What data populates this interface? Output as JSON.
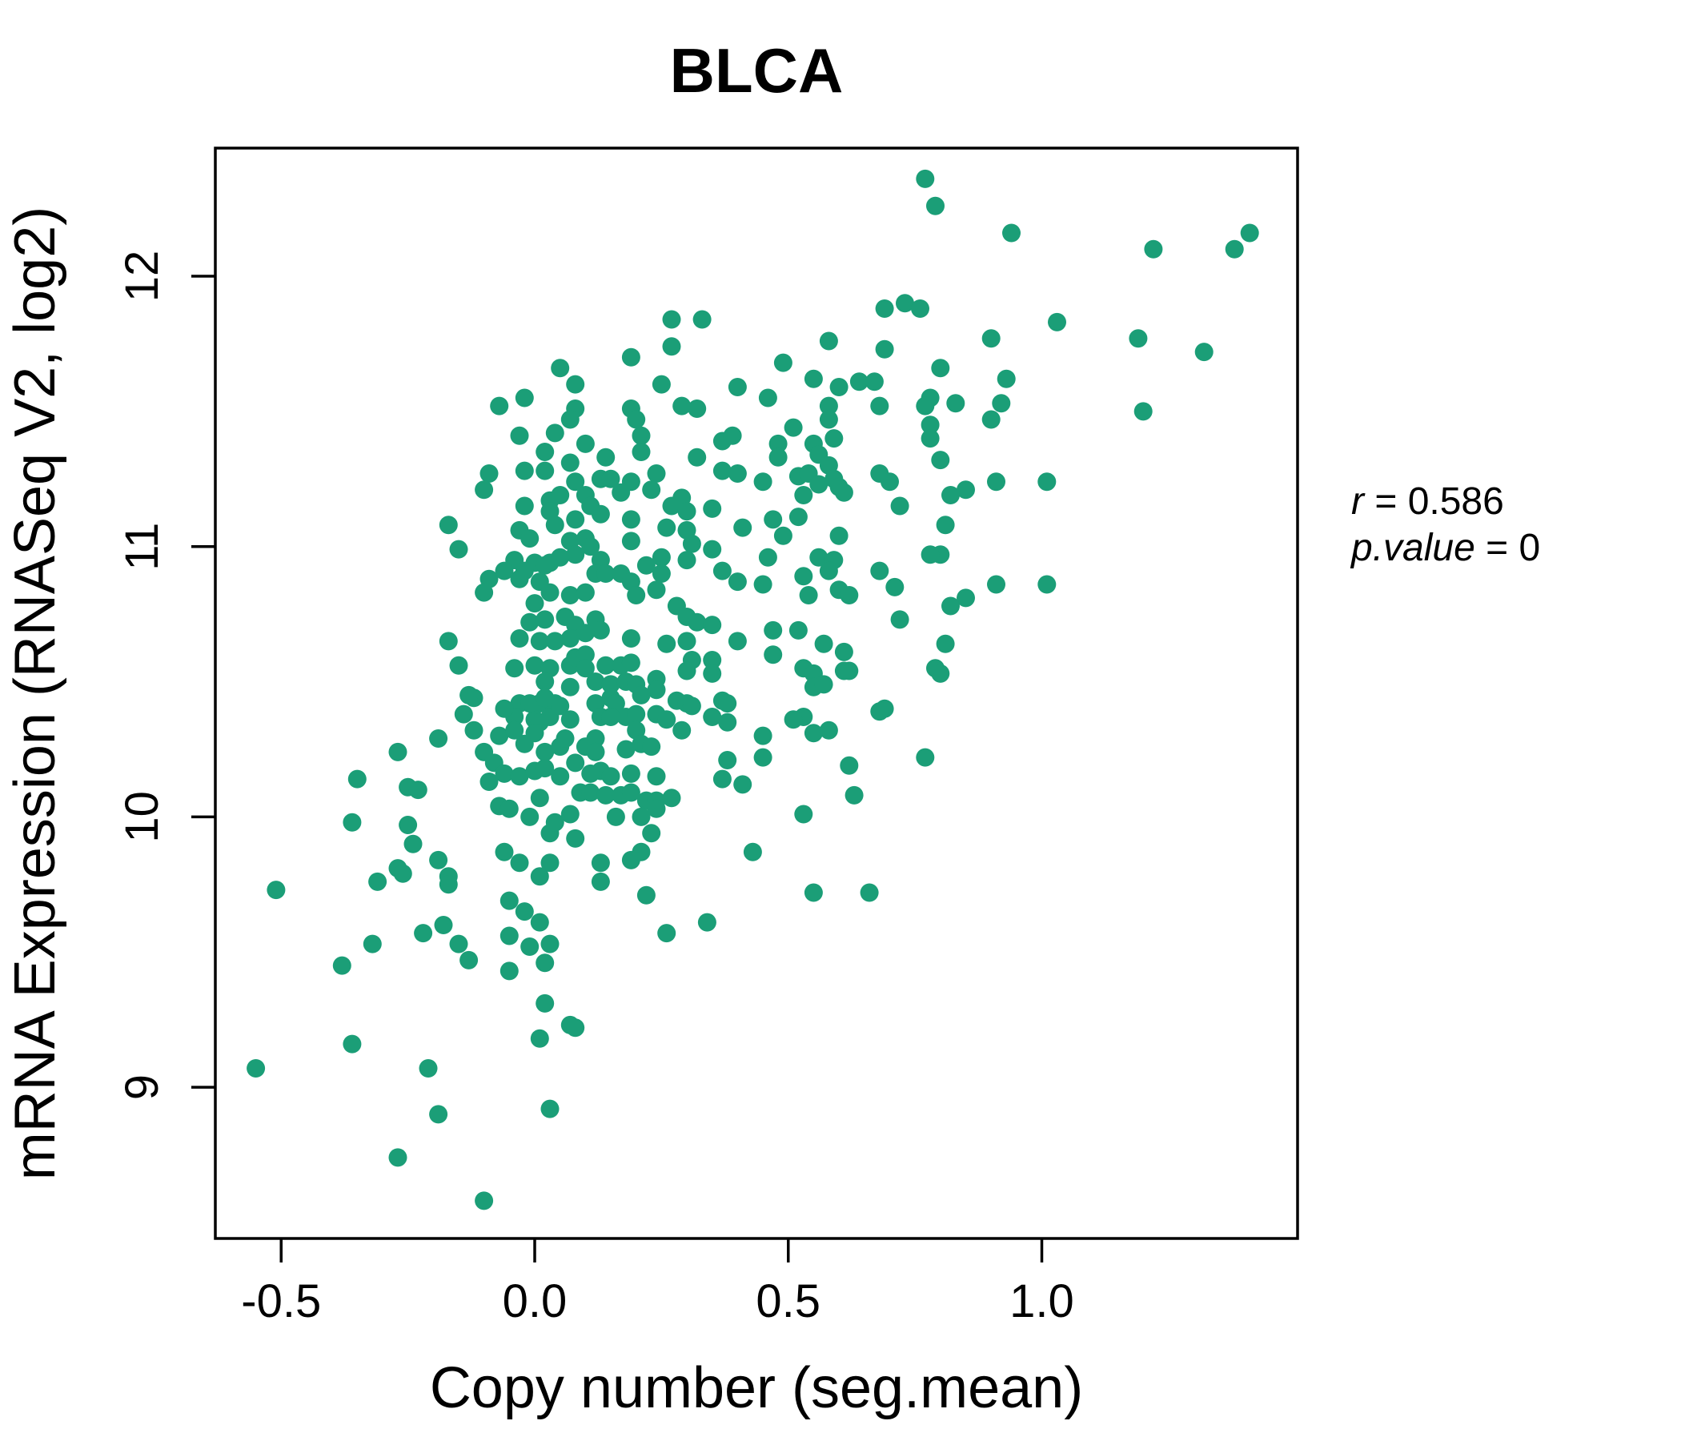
{
  "chart_data": {
    "type": "scatter",
    "title": "BLCA",
    "xlabel": "Copy number (seg.mean)",
    "ylabel": "mRNA Expression (RNASeq V2, log2)",
    "x_tick_labels": [
      "-0.5",
      "0.0",
      "0.5",
      "1.0"
    ],
    "y_tick_labels": [
      "9",
      "10",
      "11",
      "12"
    ],
    "x_ticks": [
      -0.5,
      0.0,
      0.5,
      1.0
    ],
    "y_ticks": [
      9,
      10,
      11,
      12
    ],
    "xlim": [
      -0.63,
      1.5
    ],
    "ylim": [
      8.43,
      12.47
    ],
    "grid": false,
    "legend": "none",
    "point_color": "#1B9E77",
    "title_color": "#1B9E77",
    "axis_color": "#000000",
    "annotation": {
      "r_var": "r",
      "r_rest": " = 0.586",
      "p_var": "p.value",
      "p_rest": " = 0"
    },
    "points": [
      [
        0.05,
        11.66
      ],
      [
        0.08,
        11.6
      ],
      [
        -0.07,
        11.52
      ],
      [
        -0.02,
        11.55
      ],
      [
        0.08,
        11.51
      ],
      [
        0.07,
        11.47
      ],
      [
        -0.03,
        11.41
      ],
      [
        0.04,
        11.42
      ],
      [
        0.02,
        11.35
      ],
      [
        -0.02,
        11.28
      ],
      [
        0.02,
        11.28
      ],
      [
        0.07,
        11.31
      ],
      [
        -0.09,
        11.27
      ],
      [
        -0.1,
        11.21
      ],
      [
        0.08,
        11.24
      ],
      [
        -0.02,
        11.15
      ],
      [
        0.03,
        11.17
      ],
      [
        0.05,
        11.19
      ],
      [
        -0.17,
        11.08
      ],
      [
        -0.03,
        11.06
      ],
      [
        -0.01,
        11.03
      ],
      [
        -0.15,
        10.99
      ],
      [
        0.03,
        11.13
      ],
      [
        0.04,
        11.08
      ],
      [
        0.08,
        11.1
      ],
      [
        -0.04,
        10.95
      ],
      [
        0.0,
        10.94
      ],
      [
        0.03,
        10.94
      ],
      [
        0.07,
        11.02
      ],
      [
        0.08,
        10.97
      ],
      [
        -0.06,
        10.91
      ],
      [
        -0.03,
        10.88
      ],
      [
        0.01,
        10.87
      ],
      [
        0.77,
        12.36
      ],
      [
        0.79,
        12.26
      ],
      [
        0.69,
        11.88
      ],
      [
        0.73,
        11.9
      ],
      [
        0.76,
        11.88
      ],
      [
        0.27,
        11.84
      ],
      [
        0.33,
        11.84
      ],
      [
        0.27,
        11.74
      ],
      [
        0.58,
        11.76
      ],
      [
        0.69,
        11.73
      ],
      [
        0.19,
        11.7
      ],
      [
        0.49,
        11.68
      ],
      [
        0.55,
        11.62
      ],
      [
        0.25,
        11.6
      ],
      [
        0.4,
        11.59
      ],
      [
        0.6,
        11.59
      ],
      [
        0.64,
        11.61
      ],
      [
        0.67,
        11.61
      ],
      [
        0.46,
        11.55
      ],
      [
        0.78,
        11.55
      ],
      [
        0.19,
        11.51
      ],
      [
        0.29,
        11.52
      ],
      [
        0.32,
        11.51
      ],
      [
        0.58,
        11.52
      ],
      [
        0.68,
        11.52
      ],
      [
        0.77,
        11.52
      ],
      [
        0.2,
        11.47
      ],
      [
        0.58,
        11.47
      ],
      [
        0.21,
        11.41
      ],
      [
        0.37,
        11.39
      ],
      [
        0.39,
        11.41
      ],
      [
        0.51,
        11.44
      ],
      [
        0.78,
        11.45
      ],
      [
        0.1,
        11.38
      ],
      [
        0.21,
        11.35
      ],
      [
        0.48,
        11.38
      ],
      [
        0.55,
        11.38
      ],
      [
        0.59,
        11.4
      ],
      [
        0.14,
        11.33
      ],
      [
        0.32,
        11.33
      ],
      [
        0.48,
        11.33
      ],
      [
        0.56,
        11.34
      ],
      [
        0.58,
        11.3
      ],
      [
        0.78,
        11.4
      ],
      [
        0.37,
        11.28
      ],
      [
        0.4,
        11.27
      ],
      [
        0.68,
        11.27
      ],
      [
        0.13,
        11.25
      ],
      [
        0.15,
        11.25
      ],
      [
        0.19,
        11.24
      ],
      [
        0.24,
        11.27
      ],
      [
        0.45,
        11.24
      ],
      [
        0.52,
        11.26
      ],
      [
        0.54,
        11.27
      ],
      [
        0.56,
        11.23
      ],
      [
        0.59,
        11.25
      ],
      [
        0.6,
        11.22
      ],
      [
        0.7,
        11.24
      ],
      [
        0.1,
        11.19
      ],
      [
        0.17,
        11.2
      ],
      [
        0.23,
        11.21
      ],
      [
        0.53,
        11.19
      ],
      [
        0.61,
        11.2
      ],
      [
        0.72,
        11.15
      ],
      [
        0.11,
        11.15
      ],
      [
        0.13,
        11.12
      ],
      [
        0.29,
        11.18
      ],
      [
        0.27,
        11.15
      ],
      [
        0.3,
        11.13
      ],
      [
        0.35,
        11.14
      ],
      [
        0.19,
        11.1
      ],
      [
        0.26,
        11.07
      ],
      [
        0.3,
        11.06
      ],
      [
        0.47,
        11.1
      ],
      [
        0.52,
        11.11
      ],
      [
        0.41,
        11.07
      ],
      [
        0.49,
        11.04
      ],
      [
        0.6,
        11.04
      ],
      [
        0.1,
        11.03
      ],
      [
        0.11,
        11.0
      ],
      [
        0.19,
        11.02
      ],
      [
        0.31,
        11.01
      ],
      [
        0.35,
        10.99
      ],
      [
        0.25,
        10.96
      ],
      [
        0.3,
        10.95
      ],
      [
        0.13,
        10.95
      ],
      [
        0.94,
        12.16
      ],
      [
        1.22,
        12.1
      ],
      [
        1.38,
        12.1
      ],
      [
        1.41,
        12.16
      ],
      [
        1.03,
        11.83
      ],
      [
        0.9,
        11.77
      ],
      [
        1.19,
        11.77
      ],
      [
        1.32,
        11.72
      ],
      [
        0.8,
        11.66
      ],
      [
        0.93,
        11.62
      ],
      [
        0.83,
        11.53
      ],
      [
        0.92,
        11.53
      ],
      [
        0.9,
        11.47
      ],
      [
        1.2,
        11.5
      ],
      [
        0.8,
        11.32
      ],
      [
        0.91,
        11.24
      ],
      [
        1.01,
        11.24
      ],
      [
        0.85,
        11.21
      ],
      [
        0.82,
        11.19
      ],
      [
        0.81,
        11.08
      ],
      [
        0.8,
        10.97
      ],
      [
        -0.09,
        10.88
      ],
      [
        -0.02,
        10.91
      ],
      [
        0.02,
        10.93
      ],
      [
        0.05,
        10.96
      ],
      [
        -0.1,
        10.83
      ],
      [
        0.0,
        10.79
      ],
      [
        0.03,
        10.83
      ],
      [
        0.07,
        10.82
      ],
      [
        -0.01,
        10.72
      ],
      [
        0.02,
        10.73
      ],
      [
        0.06,
        10.74
      ],
      [
        0.08,
        10.71
      ],
      [
        -0.17,
        10.65
      ],
      [
        -0.03,
        10.66
      ],
      [
        0.01,
        10.65
      ],
      [
        0.04,
        10.65
      ],
      [
        0.07,
        10.66
      ],
      [
        -0.15,
        10.56
      ],
      [
        -0.04,
        10.55
      ],
      [
        0.0,
        10.56
      ],
      [
        0.03,
        10.55
      ],
      [
        0.07,
        10.56
      ],
      [
        0.08,
        10.59
      ],
      [
        -0.12,
        10.44
      ],
      [
        0.02,
        10.5
      ],
      [
        -0.03,
        10.42
      ],
      [
        0.01,
        10.42
      ],
      [
        0.04,
        10.42
      ],
      [
        0.07,
        10.48
      ],
      [
        -0.14,
        10.38
      ],
      [
        -0.04,
        10.37
      ],
      [
        0.0,
        10.36
      ],
      [
        0.03,
        10.37
      ],
      [
        0.46,
        10.96
      ],
      [
        0.56,
        10.96
      ],
      [
        0.59,
        10.95
      ],
      [
        0.78,
        10.97
      ],
      [
        0.12,
        10.9
      ],
      [
        0.14,
        10.9
      ],
      [
        0.17,
        10.9
      ],
      [
        0.37,
        10.91
      ],
      [
        0.53,
        10.89
      ],
      [
        0.58,
        10.91
      ],
      [
        0.68,
        10.91
      ],
      [
        0.22,
        10.93
      ],
      [
        0.25,
        10.9
      ],
      [
        0.19,
        10.87
      ],
      [
        0.4,
        10.87
      ],
      [
        0.45,
        10.86
      ],
      [
        0.71,
        10.85
      ],
      [
        0.1,
        10.83
      ],
      [
        0.2,
        10.82
      ],
      [
        0.24,
        10.84
      ],
      [
        0.54,
        10.82
      ],
      [
        0.6,
        10.84
      ],
      [
        0.62,
        10.82
      ],
      [
        0.28,
        10.78
      ],
      [
        0.3,
        10.74
      ],
      [
        0.32,
        10.72
      ],
      [
        0.12,
        10.73
      ],
      [
        0.13,
        10.69
      ],
      [
        0.1,
        10.68
      ],
      [
        0.35,
        10.71
      ],
      [
        0.47,
        10.69
      ],
      [
        0.52,
        10.69
      ],
      [
        0.72,
        10.73
      ],
      [
        0.19,
        10.66
      ],
      [
        0.26,
        10.64
      ],
      [
        0.3,
        10.65
      ],
      [
        0.4,
        10.65
      ],
      [
        0.47,
        10.6
      ],
      [
        0.57,
        10.64
      ],
      [
        0.61,
        10.61
      ],
      [
        0.1,
        10.6
      ],
      [
        0.1,
        10.55
      ],
      [
        0.14,
        10.56
      ],
      [
        0.17,
        10.56
      ],
      [
        0.19,
        10.57
      ],
      [
        0.31,
        10.58
      ],
      [
        0.3,
        10.54
      ],
      [
        0.35,
        10.58
      ],
      [
        0.53,
        10.55
      ],
      [
        0.55,
        10.53
      ],
      [
        0.62,
        10.54
      ],
      [
        0.69,
        10.4
      ],
      [
        0.12,
        10.5
      ],
      [
        0.15,
        10.49
      ],
      [
        0.18,
        10.5
      ],
      [
        0.2,
        10.49
      ],
      [
        0.24,
        10.51
      ],
      [
        0.35,
        10.53
      ],
      [
        0.37,
        10.43
      ],
      [
        0.24,
        10.47
      ],
      [
        0.21,
        10.45
      ],
      [
        0.15,
        10.44
      ],
      [
        0.12,
        10.42
      ],
      [
        0.16,
        10.42
      ],
      [
        0.28,
        10.43
      ],
      [
        0.3,
        10.42
      ],
      [
        0.31,
        10.41
      ],
      [
        0.38,
        10.42
      ],
      [
        0.55,
        10.48
      ],
      [
        0.57,
        10.49
      ],
      [
        0.61,
        10.54
      ],
      [
        0.53,
        10.37
      ],
      [
        0.68,
        10.39
      ],
      [
        0.24,
        10.38
      ],
      [
        0.13,
        10.37
      ],
      [
        0.18,
        10.37
      ],
      [
        0.2,
        10.38
      ],
      [
        0.35,
        10.37
      ],
      [
        0.51,
        10.36
      ],
      [
        0.79,
        10.55
      ],
      [
        0.91,
        10.86
      ],
      [
        1.01,
        10.86
      ],
      [
        0.85,
        10.81
      ],
      [
        0.82,
        10.78
      ],
      [
        0.81,
        10.64
      ],
      [
        0.8,
        10.53
      ],
      [
        -0.13,
        10.45
      ],
      [
        -0.19,
        10.29
      ],
      [
        -0.35,
        10.14
      ],
      [
        -0.27,
        10.24
      ],
      [
        -0.12,
        10.32
      ],
      [
        -0.1,
        10.24
      ],
      [
        -0.36,
        9.98
      ],
      [
        -0.25,
        10.11
      ],
      [
        -0.23,
        10.1
      ],
      [
        -0.09,
        10.13
      ],
      [
        -0.25,
        9.97
      ],
      [
        -0.24,
        9.9
      ],
      [
        -0.51,
        9.73
      ],
      [
        -0.19,
        9.84
      ],
      [
        -0.27,
        9.81
      ],
      [
        -0.26,
        9.79
      ],
      [
        -0.31,
        9.76
      ],
      [
        -0.17,
        9.78
      ],
      [
        -0.17,
        9.75
      ],
      [
        -0.32,
        9.53
      ],
      [
        -0.22,
        9.57
      ],
      [
        -0.18,
        9.6
      ],
      [
        -0.15,
        9.53
      ],
      [
        -0.13,
        9.47
      ],
      [
        -0.38,
        9.45
      ],
      [
        -0.36,
        9.16
      ],
      [
        -0.1,
        8.58
      ],
      [
        -0.06,
        10.4
      ],
      [
        -0.01,
        10.42
      ],
      [
        0.02,
        10.44
      ],
      [
        0.05,
        10.41
      ],
      [
        0.01,
        10.35
      ],
      [
        0.07,
        10.36
      ],
      [
        -0.07,
        10.3
      ],
      [
        -0.04,
        10.32
      ],
      [
        -0.02,
        10.27
      ],
      [
        0.0,
        10.31
      ],
      [
        0.02,
        10.24
      ],
      [
        0.05,
        10.26
      ],
      [
        0.06,
        10.29
      ],
      [
        -0.08,
        10.2
      ],
      [
        -0.06,
        10.16
      ],
      [
        -0.03,
        10.15
      ],
      [
        0.0,
        10.17
      ],
      [
        0.02,
        10.18
      ],
      [
        0.05,
        10.15
      ],
      [
        0.08,
        10.2
      ],
      [
        -0.07,
        10.04
      ],
      [
        -0.05,
        10.03
      ],
      [
        -0.01,
        10.0
      ],
      [
        0.01,
        10.07
      ],
      [
        0.03,
        9.94
      ],
      [
        0.04,
        9.98
      ],
      [
        0.07,
        10.01
      ],
      [
        -0.06,
        9.87
      ],
      [
        -0.03,
        9.83
      ],
      [
        0.01,
        9.78
      ],
      [
        0.03,
        9.83
      ],
      [
        -0.05,
        9.69
      ],
      [
        -0.02,
        9.65
      ],
      [
        0.01,
        9.61
      ],
      [
        -0.05,
        9.56
      ],
      [
        -0.01,
        9.52
      ],
      [
        0.03,
        9.53
      ],
      [
        -0.05,
        9.43
      ],
      [
        0.02,
        9.46
      ],
      [
        0.02,
        9.31
      ],
      [
        0.07,
        9.23
      ],
      [
        0.01,
        9.18
      ],
      [
        0.15,
        10.37
      ],
      [
        0.26,
        10.36
      ],
      [
        0.38,
        10.35
      ],
      [
        0.29,
        10.32
      ],
      [
        0.2,
        10.32
      ],
      [
        0.55,
        10.31
      ],
      [
        0.58,
        10.32
      ],
      [
        0.45,
        10.3
      ],
      [
        0.12,
        10.29
      ],
      [
        0.1,
        10.26
      ],
      [
        0.12,
        10.24
      ],
      [
        0.18,
        10.25
      ],
      [
        0.21,
        10.27
      ],
      [
        0.23,
        10.26
      ],
      [
        0.13,
        10.17
      ],
      [
        0.11,
        10.16
      ],
      [
        0.15,
        10.15
      ],
      [
        0.19,
        10.16
      ],
      [
        0.38,
        10.21
      ],
      [
        0.45,
        10.22
      ],
      [
        0.62,
        10.19
      ],
      [
        0.77,
        10.22
      ],
      [
        0.24,
        10.15
      ],
      [
        0.37,
        10.14
      ],
      [
        0.41,
        10.12
      ],
      [
        0.09,
        10.09
      ],
      [
        0.11,
        10.09
      ],
      [
        0.14,
        10.08
      ],
      [
        0.17,
        10.08
      ],
      [
        0.19,
        10.09
      ],
      [
        0.22,
        10.06
      ],
      [
        0.24,
        10.06
      ],
      [
        0.27,
        10.07
      ],
      [
        0.63,
        10.08
      ],
      [
        0.16,
        10.0
      ],
      [
        0.21,
        10.0
      ],
      [
        0.24,
        10.03
      ],
      [
        0.53,
        10.01
      ],
      [
        0.23,
        9.94
      ],
      [
        0.08,
        9.92
      ],
      [
        0.43,
        9.87
      ],
      [
        0.13,
        9.83
      ],
      [
        0.19,
        9.84
      ],
      [
        0.21,
        9.87
      ],
      [
        0.13,
        9.76
      ],
      [
        0.22,
        9.71
      ],
      [
        0.55,
        9.72
      ],
      [
        0.66,
        9.72
      ],
      [
        0.34,
        9.61
      ],
      [
        0.26,
        9.57
      ],
      [
        0.08,
        9.22
      ],
      [
        -0.21,
        9.07
      ],
      [
        -0.55,
        9.07
      ],
      [
        -0.19,
        8.9
      ],
      [
        -0.27,
        8.74
      ],
      [
        0.03,
        8.92
      ]
    ]
  }
}
